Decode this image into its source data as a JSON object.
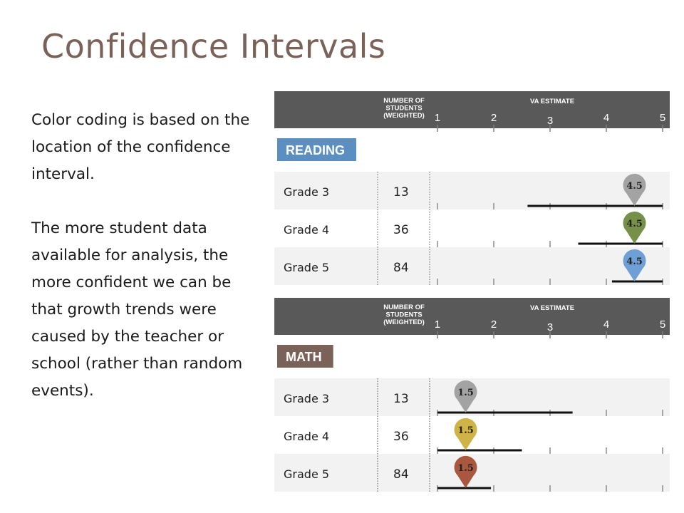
{
  "title": "Confidence Intervals",
  "body": {
    "p1": "Color coding is based on the location of the confidence interval.",
    "p2": "The more student data available for analysis, the more confident we can be that growth trends were caused by the teacher or school (rather than random events)."
  },
  "chart_data": [
    {
      "type": "interval",
      "section": "READING",
      "header": {
        "students_label": [
          "NUMBER OF",
          "STUDENTS",
          "(WEIGHTED)"
        ],
        "estimate_label": "VA ESTIMATE"
      },
      "ticks": [
        "1",
        "2",
        "3",
        "4",
        "5"
      ],
      "xlim": [
        1,
        5
      ],
      "colors": {
        "header": "#595959",
        "tag": "#5b8fc1"
      },
      "rows": [
        {
          "label": "Grade 3",
          "n": "13",
          "estimate": 4.5,
          "estimate_label": "4.5",
          "ci": [
            2.6,
            5.0
          ],
          "color": "#a3a3a3"
        },
        {
          "label": "Grade 4",
          "n": "36",
          "estimate": 4.5,
          "estimate_label": "4.5",
          "ci": [
            3.5,
            5.0
          ],
          "color": "#76904a"
        },
        {
          "label": "Grade 5",
          "n": "84",
          "estimate": 4.5,
          "estimate_label": "4.5",
          "ci": [
            4.1,
            5.0
          ],
          "color": "#6e9fd6"
        }
      ]
    },
    {
      "type": "interval",
      "section": "MATH",
      "header": {
        "students_label": [
          "NUMBER OF",
          "STUDENTS",
          "(WEIGHTED)"
        ],
        "estimate_label": "VA ESTIMATE"
      },
      "ticks": [
        "1",
        "2",
        "3",
        "4",
        "5"
      ],
      "xlim": [
        1,
        5
      ],
      "colors": {
        "header": "#595959",
        "tag": "#7a6259"
      },
      "rows": [
        {
          "label": "Grade 3",
          "n": "13",
          "estimate": 1.5,
          "estimate_label": "1.5",
          "ci": [
            1.0,
            3.4
          ],
          "color": "#a3a3a3"
        },
        {
          "label": "Grade 4",
          "n": "36",
          "estimate": 1.5,
          "estimate_label": "1.5",
          "ci": [
            1.0,
            2.5
          ],
          "color": "#cfb346"
        },
        {
          "label": "Grade 5",
          "n": "84",
          "estimate": 1.5,
          "estimate_label": "1.5",
          "ci": [
            1.0,
            1.95
          ],
          "color": "#a9583f"
        }
      ]
    }
  ]
}
